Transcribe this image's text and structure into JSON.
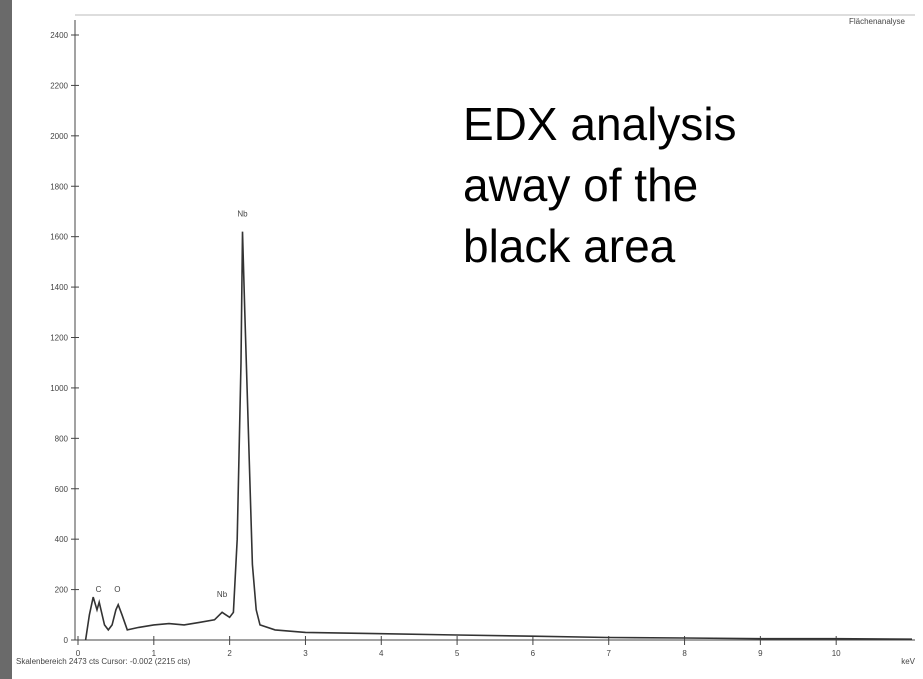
{
  "chart_data": {
    "type": "line",
    "corner_label": "Flächenanalyse",
    "x_unit_label": "keV",
    "status_text": "Skalenbereich 2473 cts Cursor: -0.002  (2215 cts)",
    "overlay_text": [
      "EDX analysis",
      "away of the",
      "black area"
    ],
    "color": "#333333",
    "x": [
      0.1,
      0.15,
      0.2,
      0.25,
      0.28,
      0.35,
      0.4,
      0.45,
      0.5,
      0.53,
      0.58,
      0.65,
      0.8,
      1.0,
      1.2,
      1.4,
      1.6,
      1.8,
      1.9,
      1.95,
      2.0,
      2.05,
      2.1,
      2.15,
      2.17,
      2.2,
      2.25,
      2.3,
      2.35,
      2.4,
      2.6,
      3.0,
      4.0,
      5.0,
      6.0,
      7.0,
      8.0,
      9.0,
      10.0,
      11.0
    ],
    "values": [
      0,
      100,
      170,
      120,
      150,
      60,
      40,
      60,
      120,
      140,
      100,
      40,
      50,
      60,
      65,
      60,
      70,
      80,
      110,
      100,
      90,
      110,
      400,
      1100,
      1620,
      1300,
      800,
      300,
      120,
      60,
      40,
      30,
      25,
      20,
      15,
      10,
      8,
      5,
      5,
      3
    ],
    "annotations": [
      {
        "text": "C",
        "x": 0.27,
        "y": 190
      },
      {
        "text": "O",
        "x": 0.52,
        "y": 190
      },
      {
        "text": "Nb",
        "x": 1.9,
        "y": 170
      },
      {
        "text": "Nb",
        "x": 2.17,
        "y": 1680
      }
    ],
    "xlim": [
      0,
      11
    ],
    "ylim": [
      0,
      2400
    ],
    "xticks": [
      0,
      1,
      2,
      3,
      4,
      5,
      6,
      7,
      8,
      9,
      10
    ],
    "yticks": [
      0,
      200,
      400,
      600,
      800,
      1000,
      1200,
      1400,
      1600,
      1800,
      2000,
      2200,
      2400
    ]
  }
}
